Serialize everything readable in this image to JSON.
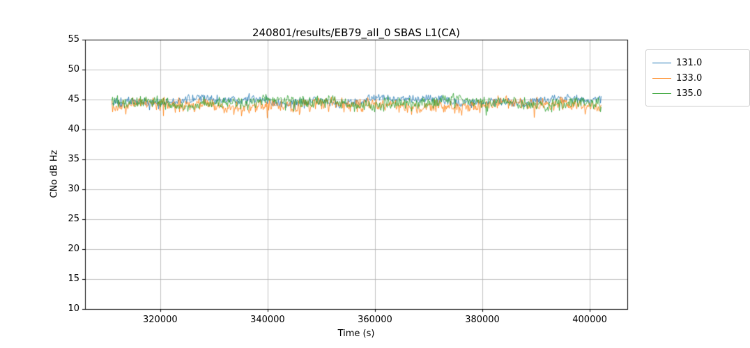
{
  "chart_data": {
    "type": "line",
    "title": "240801/results/EB79_all_0 SBAS L1(CA)",
    "xlabel": "Time (s)",
    "ylabel": "CNo dB Hz",
    "xlim": [
      306000,
      407000
    ],
    "ylim": [
      10,
      55
    ],
    "xticks": [
      320000,
      340000,
      360000,
      380000,
      400000
    ],
    "xtick_labels": [
      "320000",
      "340000",
      "360000",
      "380000",
      "400000"
    ],
    "yticks": [
      10,
      15,
      20,
      25,
      30,
      35,
      40,
      45,
      50,
      55
    ],
    "ytick_labels": [
      "10",
      "15",
      "20",
      "25",
      "30",
      "35",
      "40",
      "45",
      "50",
      "55"
    ],
    "grid": true,
    "grid_color": "#b0b0b0",
    "axis_color": "#000000",
    "x_data_range": [
      311000,
      402200
    ],
    "series": [
      {
        "name": "131.0",
        "color": "#1f77b4",
        "mean": 44.8,
        "noise_amplitude": 0.9,
        "dip_depth": 1.0
      },
      {
        "name": "133.0",
        "color": "#ff7f0e",
        "mean": 44.0,
        "noise_amplitude": 1.4,
        "dip_depth": 1.4
      },
      {
        "name": "135.0",
        "color": "#2ca02c",
        "mean": 44.5,
        "noise_amplitude": 1.2,
        "dip_depth": 1.2
      }
    ],
    "legend": {
      "position": "upper-right-outside",
      "labels": [
        "131.0",
        "133.0",
        "135.0"
      ]
    }
  }
}
